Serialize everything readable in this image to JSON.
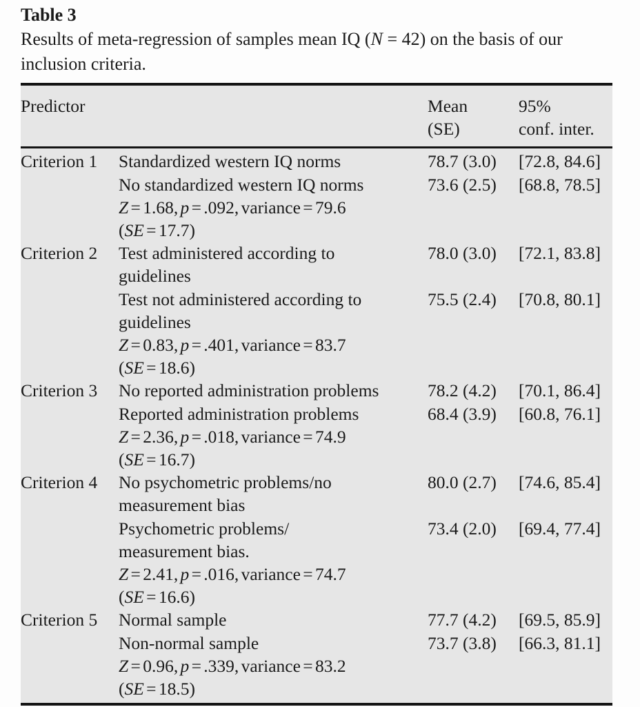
{
  "colors": {
    "page_background": "#fdfdfd",
    "table_background": "#e6e6e6",
    "text": "#1a1a1a",
    "rule": "#141414"
  },
  "title": "Table 3",
  "caption": {
    "lines": [
      {
        "segments": [
          {
            "t": "Results of meta-regression of samples mean IQ (",
            "i": false
          },
          {
            "t": "N",
            "i": true
          },
          {
            "t": " = 42) on the basis of our",
            "i": false
          }
        ]
      },
      {
        "segments": [
          {
            "t": "inclusion criteria.",
            "i": false
          }
        ]
      }
    ]
  },
  "table": {
    "header": {
      "predictor": "Predictor",
      "mean_line1": "Mean",
      "mean_line2": "(SE)",
      "ci_line1": "95%",
      "ci_line2": "conf. inter."
    },
    "criteria": [
      {
        "name": "Criterion 1",
        "levels": [
          {
            "label_lines": [
              "Standardized western IQ norms"
            ],
            "mean": "78.7 (3.0)",
            "ci": "[72.8, 84.6]"
          },
          {
            "label_lines": [
              "No standardized western IQ norms"
            ],
            "mean": "73.6 (2.5)",
            "ci": "[68.8, 78.5]"
          }
        ],
        "stats_lines": [
          {
            "segments": [
              {
                "t": "Z",
                "i": true
              },
              {
                "t": " = 1.68, ",
                "i": false
              },
              {
                "t": "p",
                "i": true
              },
              {
                "t": " = .092, variance = 79.6",
                "i": false
              }
            ]
          },
          {
            "segments": [
              {
                "t": "(",
                "i": false
              },
              {
                "t": "SE",
                "i": true
              },
              {
                "t": " = 17.7)",
                "i": false
              }
            ]
          }
        ]
      },
      {
        "name": "Criterion 2",
        "levels": [
          {
            "label_lines": [
              "Test administered according to",
              "guidelines"
            ],
            "mean": "78.0 (3.0)",
            "ci": "[72.1, 83.8]"
          },
          {
            "label_lines": [
              "Test not administered according to",
              "guidelines"
            ],
            "mean": "75.5 (2.4)",
            "ci": "[70.8, 80.1]"
          }
        ],
        "stats_lines": [
          {
            "segments": [
              {
                "t": "Z",
                "i": true
              },
              {
                "t": " = 0.83, ",
                "i": false
              },
              {
                "t": "p",
                "i": true
              },
              {
                "t": " = .401, variance = 83.7",
                "i": false
              }
            ]
          },
          {
            "segments": [
              {
                "t": "(",
                "i": false
              },
              {
                "t": "SE",
                "i": true
              },
              {
                "t": " = 18.6)",
                "i": false
              }
            ]
          }
        ]
      },
      {
        "name": "Criterion 3",
        "levels": [
          {
            "label_lines": [
              "No reported administration problems"
            ],
            "mean": "78.2 (4.2)",
            "ci": "[70.1, 86.4]"
          },
          {
            "label_lines": [
              "Reported administration problems"
            ],
            "mean": "68.4 (3.9)",
            "ci": "[60.8, 76.1]"
          }
        ],
        "stats_lines": [
          {
            "segments": [
              {
                "t": "Z",
                "i": true
              },
              {
                "t": " = 2.36, ",
                "i": false
              },
              {
                "t": "p",
                "i": true
              },
              {
                "t": " = .018, variance = 74.9",
                "i": false
              }
            ]
          },
          {
            "segments": [
              {
                "t": "(",
                "i": false
              },
              {
                "t": "SE",
                "i": true
              },
              {
                "t": " = 16.7)",
                "i": false
              }
            ]
          }
        ]
      },
      {
        "name": "Criterion 4",
        "levels": [
          {
            "label_lines": [
              "No psychometric problems/no",
              "measurement bias"
            ],
            "mean": "80.0 (2.7)",
            "ci": "[74.6, 85.4]"
          },
          {
            "label_lines": [
              "Psychometric problems/",
              "measurement bias."
            ],
            "mean": "73.4 (2.0)",
            "ci": "[69.4, 77.4]"
          }
        ],
        "stats_lines": [
          {
            "segments": [
              {
                "t": "Z",
                "i": true
              },
              {
                "t": " = 2.41, ",
                "i": false
              },
              {
                "t": "p",
                "i": true
              },
              {
                "t": " = .016, variance = 74.7",
                "i": false
              }
            ]
          },
          {
            "segments": [
              {
                "t": "(",
                "i": false
              },
              {
                "t": "SE",
                "i": true
              },
              {
                "t": " = 16.6)",
                "i": false
              }
            ]
          }
        ]
      },
      {
        "name": "Criterion 5",
        "levels": [
          {
            "label_lines": [
              "Normal sample"
            ],
            "mean": "77.7 (4.2)",
            "ci": "[69.5, 85.9]"
          },
          {
            "label_lines": [
              "Non-normal sample"
            ],
            "mean": "73.7 (3.8)",
            "ci": "[66.3, 81.1]"
          }
        ],
        "stats_lines": [
          {
            "segments": [
              {
                "t": "Z",
                "i": true
              },
              {
                "t": " = 0.96, ",
                "i": false
              },
              {
                "t": "p",
                "i": true
              },
              {
                "t": " = .339, variance = 83.2",
                "i": false
              }
            ]
          },
          {
            "segments": [
              {
                "t": "(",
                "i": false
              },
              {
                "t": "SE",
                "i": true
              },
              {
                "t": " = 18.5)",
                "i": false
              }
            ]
          }
        ]
      }
    ]
  }
}
